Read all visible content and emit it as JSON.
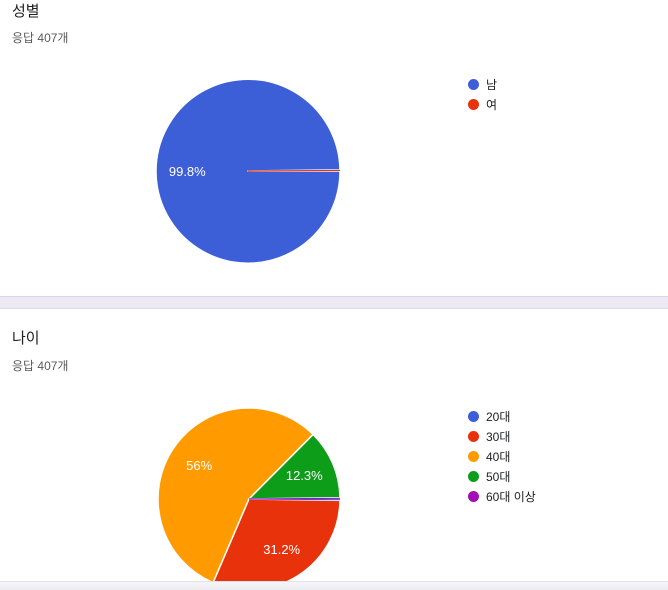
{
  "cards": [
    {
      "title": "성별",
      "responses": "응답 407개"
    },
    {
      "title": "나이",
      "responses": "응답 407개"
    }
  ],
  "chart_data": [
    {
      "type": "pie",
      "title": "성별",
      "responses_text": "응답 407개",
      "categories": [
        "남",
        "여"
      ],
      "values": [
        99.8,
        0.2
      ],
      "unit": "%",
      "colors": [
        "#3C5FD7",
        "#E8320C"
      ],
      "slice_labels": [
        "99.8%",
        ""
      ],
      "slice_label_color": "#ffffff",
      "legend_position": "right",
      "start_angle": "3-oclock, clockwise"
    },
    {
      "type": "pie",
      "title": "나이",
      "responses_text": "응답 407개",
      "categories": [
        "20대",
        "30대",
        "40대",
        "50대",
        "60대 이상"
      ],
      "values": [
        0.25,
        31.2,
        56,
        12.3,
        0.25
      ],
      "unit": "%",
      "colors": [
        "#3C5FD7",
        "#E8320C",
        "#FF9B00",
        "#0E9D18",
        "#A20FB3"
      ],
      "slice_labels": [
        "",
        "31.2%",
        "56%",
        "12.3%",
        ""
      ],
      "slice_label_color": "#ffffff",
      "legend_position": "right",
      "start_angle": "3-oclock, clockwise"
    }
  ]
}
